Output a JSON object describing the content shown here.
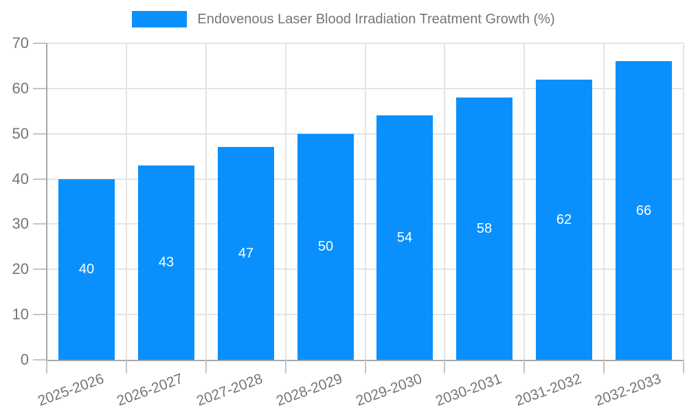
{
  "legend": {
    "label": "Endovenous Laser Blood Irradiation Treatment Growth (%)",
    "swatch_color": "#0a90fc"
  },
  "chart_data": {
    "type": "bar",
    "title": "Endovenous Laser Blood Irradiation Treatment Growth (%)",
    "categories": [
      "2025-2026",
      "2026-2027",
      "2027-2028",
      "2028-2029",
      "2029-2030",
      "2030-2031",
      "2031-2032",
      "2032-2033"
    ],
    "values": [
      40,
      43,
      47,
      50,
      54,
      58,
      62,
      66
    ],
    "xlabel": "",
    "ylabel": "",
    "ylim": [
      0,
      70
    ],
    "ytick_step": 10,
    "ytick_labels": [
      "0",
      "10",
      "20",
      "30",
      "40",
      "50",
      "60",
      "70"
    ],
    "grid": true,
    "legend_position": "top-center",
    "bar_color": "#0a90fc",
    "value_label_color": "#ffffff",
    "axis_text_color": "#757575",
    "gridline_color": "#e4e4e4",
    "axis_line_color": "#a6a6a6"
  }
}
